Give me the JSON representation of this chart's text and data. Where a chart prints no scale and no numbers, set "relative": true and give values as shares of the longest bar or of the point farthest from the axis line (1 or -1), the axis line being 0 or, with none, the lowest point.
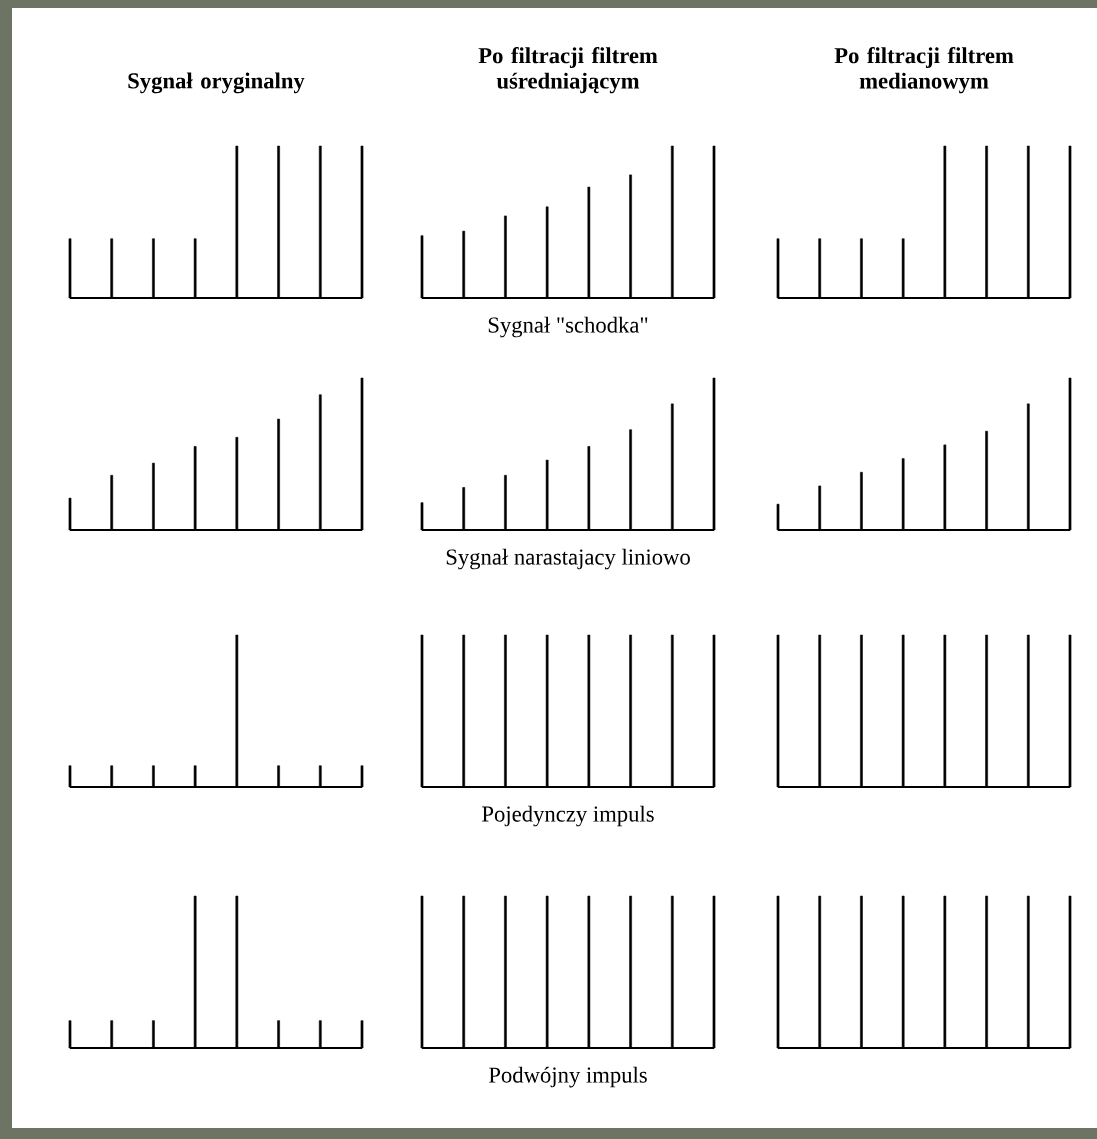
{
  "chart_data": [
    {
      "type": "bar",
      "relative": true,
      "title": "Sygnał oryginalny",
      "categories": [
        null,
        null,
        null,
        null,
        null,
        null,
        null,
        null
      ],
      "values": [
        0.39,
        0.39,
        0.39,
        0.39,
        1,
        1,
        1,
        1
      ],
      "color": "#000000"
    },
    {
      "type": "bar",
      "relative": true,
      "title": "Po filtracji filtrem uśredniającym",
      "xlabel": "Sygnał \"schodka\"",
      "categories": [
        null,
        null,
        null,
        null,
        null,
        null,
        null,
        null
      ],
      "values": [
        0.41,
        0.44,
        0.54,
        0.6,
        0.73,
        0.81,
        1,
        1
      ],
      "color": "#000000"
    },
    {
      "type": "bar",
      "relative": true,
      "title": "Po filtracji filtrem medianowym",
      "categories": [
        null,
        null,
        null,
        null,
        null,
        null,
        null,
        null
      ],
      "values": [
        0.39,
        0.39,
        0.39,
        0.39,
        1,
        1,
        1,
        1
      ],
      "color": "#000000"
    },
    {
      "type": "bar",
      "relative": true,
      "categories": [
        null,
        null,
        null,
        null,
        null,
        null,
        null,
        null
      ],
      "values": [
        0.21,
        0.36,
        0.44,
        0.55,
        0.61,
        0.73,
        0.89,
        1
      ],
      "color": "#000000"
    },
    {
      "type": "bar",
      "relative": true,
      "xlabel": "Sygnał narastajacy liniowo",
      "categories": [
        null,
        null,
        null,
        null,
        null,
        null,
        null,
        null
      ],
      "values": [
        0.18,
        0.28,
        0.36,
        0.46,
        0.55,
        0.66,
        0.83,
        1
      ],
      "color": "#000000"
    },
    {
      "type": "bar",
      "relative": true,
      "categories": [
        null,
        null,
        null,
        null,
        null,
        null,
        null,
        null
      ],
      "values": [
        0.17,
        0.29,
        0.38,
        0.47,
        0.56,
        0.65,
        0.83,
        1
      ],
      "color": "#000000"
    },
    {
      "type": "bar",
      "relative": true,
      "categories": [
        null,
        null,
        null,
        null,
        null,
        null,
        null,
        null
      ],
      "values": [
        0.14,
        0.14,
        0.14,
        0.14,
        1,
        0.14,
        0.14,
        0.14
      ],
      "color": "#000000"
    },
    {
      "type": "bar",
      "relative": true,
      "xlabel": "Pojedynczy impuls",
      "categories": [
        null,
        null,
        null,
        null,
        null,
        null,
        null,
        null
      ],
      "values": [
        1,
        1,
        1,
        1,
        1,
        1,
        1,
        1
      ],
      "color": "#000000"
    },
    {
      "type": "bar",
      "relative": true,
      "categories": [
        null,
        null,
        null,
        null,
        null,
        null,
        null,
        null
      ],
      "values": [
        1,
        1,
        1,
        1,
        1,
        1,
        1,
        1
      ],
      "color": "#000000"
    },
    {
      "type": "bar",
      "relative": true,
      "categories": [
        null,
        null,
        null,
        null,
        null,
        null,
        null,
        null
      ],
      "values": [
        0.18,
        0.18,
        0.18,
        1,
        1,
        0.18,
        0.18,
        0.18
      ],
      "color": "#000000"
    },
    {
      "type": "bar",
      "relative": true,
      "xlabel": "Podwójny impuls",
      "categories": [
        null,
        null,
        null,
        null,
        null,
        null,
        null,
        null
      ],
      "values": [
        1,
        1,
        1,
        1,
        1,
        1,
        1,
        1
      ],
      "color": "#000000"
    },
    {
      "type": "bar",
      "relative": true,
      "categories": [
        null,
        null,
        null,
        null,
        null,
        null,
        null,
        null
      ],
      "values": [
        1,
        1,
        1,
        1,
        1,
        1,
        1,
        1
      ],
      "color": "#000000"
    }
  ]
}
